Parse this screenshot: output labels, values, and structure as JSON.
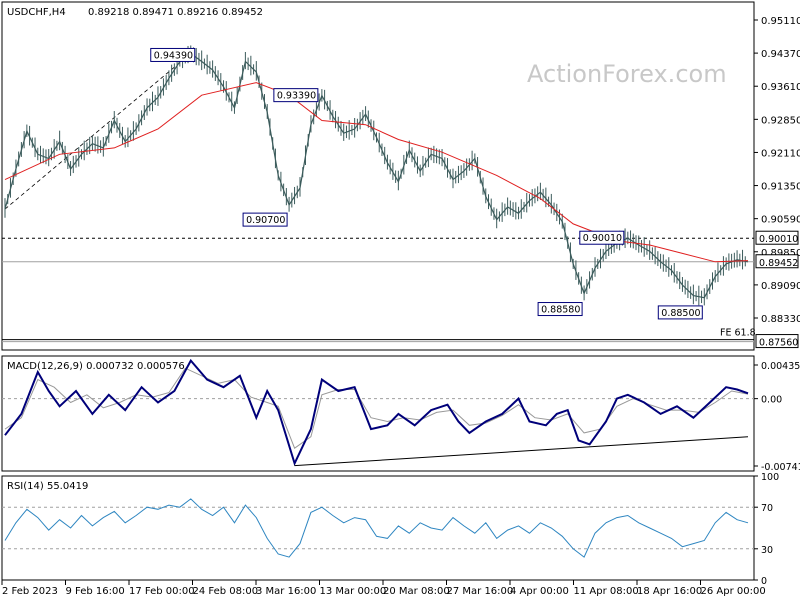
{
  "header": {
    "symbol": "USDCHF,H4",
    "ohlc": "0.89218 0.89471 0.89216 0.89452"
  },
  "watermark": "ActionForex.com",
  "colors": {
    "candle": "#3b5b5b",
    "ma": "#e02020",
    "macd": "#00007a",
    "signal": "#999999",
    "rsi": "#2e86c1",
    "grid": "#c8c8c8",
    "label_border": "#00007a"
  },
  "chart_data": [
    {
      "type": "candlestick",
      "title": "USDCHF,H4",
      "ylim": [
        0.8736,
        0.9561
      ],
      "y_ticks": [
        "0.95110",
        "0.94370",
        "0.93610",
        "0.92850",
        "0.92110",
        "0.91350",
        "0.90590",
        "0.89850",
        "0.89090",
        "0.88330"
      ],
      "x_ticks": [
        "2 Feb 2023",
        "9 Feb 16:00",
        "17 Feb 00:00",
        "24 Feb 08:00",
        "3 Mar 16:00",
        "13 Mar 00:00",
        "20 Mar 08:00",
        "27 Mar 16:00",
        "4 Apr 00:00",
        "11 Apr 08:00",
        "18 Apr 16:00",
        "26 Apr 00:00"
      ],
      "close_path": [
        [
          0,
          0.907
        ],
        [
          2,
          0.9165
        ],
        [
          4,
          0.9255
        ],
        [
          6,
          0.92
        ],
        [
          8,
          0.919
        ],
        [
          10,
          0.923
        ],
        [
          12,
          0.9165
        ],
        [
          14,
          0.92
        ],
        [
          16,
          0.9225
        ],
        [
          18,
          0.9215
        ],
        [
          20,
          0.928
        ],
        [
          22,
          0.923
        ],
        [
          24,
          0.926
        ],
        [
          26,
          0.931
        ],
        [
          28,
          0.9335
        ],
        [
          30,
          0.938
        ],
        [
          32,
          0.942
        ],
        [
          34,
          0.9439
        ],
        [
          36,
          0.942
        ],
        [
          38,
          0.94
        ],
        [
          40,
          0.936
        ],
        [
          42,
          0.931
        ],
        [
          44,
          0.942
        ],
        [
          46,
          0.9395
        ],
        [
          48,
          0.93
        ],
        [
          50,
          0.915
        ],
        [
          52,
          0.908
        ],
        [
          54,
          0.912
        ],
        [
          56,
          0.927
        ],
        [
          58,
          0.9339
        ],
        [
          60,
          0.929
        ],
        [
          62,
          0.925
        ],
        [
          64,
          0.926
        ],
        [
          66,
          0.9295
        ],
        [
          68,
          0.924
        ],
        [
          70,
          0.918
        ],
        [
          72,
          0.9135
        ],
        [
          74,
          0.921
        ],
        [
          76,
          0.916
        ],
        [
          78,
          0.92
        ],
        [
          80,
          0.919
        ],
        [
          82,
          0.914
        ],
        [
          84,
          0.916
        ],
        [
          86,
          0.919
        ],
        [
          88,
          0.91
        ],
        [
          90,
          0.9045
        ],
        [
          92,
          0.9075
        ],
        [
          94,
          0.906
        ],
        [
          96,
          0.909
        ],
        [
          98,
          0.911
        ],
        [
          100,
          0.908
        ],
        [
          102,
          0.904
        ],
        [
          104,
          0.894
        ],
        [
          106,
          0.887
        ],
        [
          108,
          0.893
        ],
        [
          110,
          0.897
        ],
        [
          112,
          0.899
        ],
        [
          114,
          0.9001
        ],
        [
          116,
          0.8985
        ],
        [
          118,
          0.897
        ],
        [
          120,
          0.8945
        ],
        [
          122,
          0.8925
        ],
        [
          124,
          0.889
        ],
        [
          126,
          0.8865
        ],
        [
          128,
          0.886
        ],
        [
          130,
          0.891
        ],
        [
          132,
          0.894
        ],
        [
          134,
          0.895
        ],
        [
          136,
          0.8945
        ]
      ],
      "ma_path": [
        [
          0,
          0.914
        ],
        [
          10,
          0.92
        ],
        [
          20,
          0.9215
        ],
        [
          28,
          0.926
        ],
        [
          36,
          0.934
        ],
        [
          46,
          0.937
        ],
        [
          52,
          0.934
        ],
        [
          58,
          0.928
        ],
        [
          66,
          0.927
        ],
        [
          72,
          0.9235
        ],
        [
          80,
          0.9205
        ],
        [
          90,
          0.915
        ],
        [
          98,
          0.9095
        ],
        [
          104,
          0.9035
        ],
        [
          112,
          0.8995
        ],
        [
          118,
          0.8985
        ],
        [
          124,
          0.8965
        ],
        [
          130,
          0.8945
        ],
        [
          136,
          0.8948
        ]
      ],
      "horizontal_levels": [
        {
          "price": 0.9001,
          "style": "dashed",
          "label": "0.90010"
        },
        {
          "price": 0.89452,
          "style": "solid",
          "label": "0.89452"
        },
        {
          "price": 0.8756,
          "style": "solid",
          "label": "0.87560",
          "note": "FE 61.8"
        }
      ],
      "annotations": [
        {
          "text": "0.94390",
          "x": 34,
          "y": 0.9439,
          "anchor": "above"
        },
        {
          "text": "0.93390",
          "x": 58,
          "y": 0.9339,
          "anchor": "left"
        },
        {
          "text": "0.90700",
          "x": 52,
          "y": 0.907,
          "anchor": "below"
        },
        {
          "text": "0.90010",
          "x": 114,
          "y": 0.9001,
          "anchor": "left"
        },
        {
          "text": "0.88580",
          "x": 106,
          "y": 0.8858,
          "anchor": "below"
        },
        {
          "text": "0.88500",
          "x": 128,
          "y": 0.885,
          "anchor": "below"
        }
      ],
      "trendline": {
        "from": [
          0,
          0.907
        ],
        "to": [
          34,
          0.9439
        ],
        "style": "dashed"
      }
    },
    {
      "type": "line",
      "title": "MACD(12,26,9) 0.000732 0.000576",
      "ylim": [
        -0.0095,
        0.0056
      ],
      "y_ticks": [
        "0.004354",
        "0.00",
        "-0.007417"
      ],
      "macd_path": [
        [
          0,
          -0.0048
        ],
        [
          3,
          -0.002
        ],
        [
          6,
          0.0035
        ],
        [
          8,
          0.001
        ],
        [
          10,
          -0.001
        ],
        [
          13,
          0.001
        ],
        [
          16,
          -0.002
        ],
        [
          19,
          0.0005
        ],
        [
          22,
          -0.0015
        ],
        [
          25,
          0.0015
        ],
        [
          28,
          -0.0005
        ],
        [
          31,
          0.001
        ],
        [
          34,
          0.005
        ],
        [
          37,
          0.0025
        ],
        [
          40,
          0.0015
        ],
        [
          43,
          0.003
        ],
        [
          46,
          -0.0025
        ],
        [
          48,
          0.001
        ],
        [
          50,
          -0.0015
        ],
        [
          53,
          -0.0085
        ],
        [
          56,
          -0.004
        ],
        [
          58,
          0.0025
        ],
        [
          61,
          0.001
        ],
        [
          64,
          0.0015
        ],
        [
          67,
          -0.004
        ],
        [
          70,
          -0.0035
        ],
        [
          72,
          -0.002
        ],
        [
          75,
          -0.0035
        ],
        [
          78,
          -0.0015
        ],
        [
          81,
          -0.0008
        ],
        [
          83,
          -0.003
        ],
        [
          85,
          -0.0045
        ],
        [
          88,
          -0.003
        ],
        [
          91,
          -0.002
        ],
        [
          94,
          0.0
        ],
        [
          96,
          -0.003
        ],
        [
          99,
          -0.0035
        ],
        [
          101,
          -0.002
        ],
        [
          103,
          -0.0015
        ],
        [
          105,
          -0.0055
        ],
        [
          107,
          -0.006
        ],
        [
          110,
          -0.003
        ],
        [
          112,
          0.0
        ],
        [
          114,
          0.0005
        ],
        [
          117,
          -0.0005
        ],
        [
          120,
          -0.002
        ],
        [
          123,
          -0.001
        ],
        [
          126,
          -0.0025
        ],
        [
          129,
          -0.0005
        ],
        [
          132,
          0.0015
        ],
        [
          134,
          0.0012
        ],
        [
          136,
          0.0007
        ]
      ],
      "signal_path": [
        [
          0,
          -0.004
        ],
        [
          3,
          -0.0025
        ],
        [
          6,
          0.0025
        ],
        [
          9,
          0.0015
        ],
        [
          12,
          -0.0005
        ],
        [
          15,
          0.0005
        ],
        [
          18,
          -0.0012
        ],
        [
          21,
          -0.0005
        ],
        [
          24,
          0.0005
        ],
        [
          27,
          0.0002
        ],
        [
          30,
          0.0008
        ],
        [
          33,
          0.004
        ],
        [
          36,
          0.003
        ],
        [
          39,
          0.002
        ],
        [
          42,
          0.0025
        ],
        [
          45,
          0.0002
        ],
        [
          48,
          -0.0005
        ],
        [
          50,
          -0.001
        ],
        [
          53,
          -0.0065
        ],
        [
          56,
          -0.005
        ],
        [
          58,
          0.0005
        ],
        [
          61,
          0.0012
        ],
        [
          64,
          0.0012
        ],
        [
          67,
          -0.0025
        ],
        [
          70,
          -0.003
        ],
        [
          73,
          -0.0025
        ],
        [
          76,
          -0.0028
        ],
        [
          79,
          -0.0018
        ],
        [
          82,
          -0.0015
        ],
        [
          85,
          -0.0035
        ],
        [
          88,
          -0.0032
        ],
        [
          91,
          -0.0022
        ],
        [
          94,
          -0.0008
        ],
        [
          97,
          -0.0025
        ],
        [
          100,
          -0.0028
        ],
        [
          103,
          -0.002
        ],
        [
          106,
          -0.0045
        ],
        [
          109,
          -0.004
        ],
        [
          112,
          -0.001
        ],
        [
          115,
          0.0
        ],
        [
          118,
          -0.0008
        ],
        [
          121,
          -0.0015
        ],
        [
          124,
          -0.0015
        ],
        [
          127,
          -0.0018
        ],
        [
          130,
          -0.0005
        ],
        [
          133,
          0.001
        ],
        [
          136,
          0.0006
        ]
      ],
      "trendline": {
        "from": [
          53,
          -0.0088
        ],
        "to": [
          136,
          -0.005
        ]
      }
    },
    {
      "type": "line",
      "title": "RSI(14) 55.0419",
      "ylim": [
        0,
        100
      ],
      "y_ticks": [
        100,
        70,
        30,
        0
      ],
      "levels": [
        70,
        30
      ],
      "rsi_path": [
        [
          0,
          38
        ],
        [
          2,
          55
        ],
        [
          4,
          68
        ],
        [
          6,
          60
        ],
        [
          8,
          48
        ],
        [
          10,
          58
        ],
        [
          12,
          50
        ],
        [
          14,
          62
        ],
        [
          16,
          52
        ],
        [
          18,
          60
        ],
        [
          20,
          66
        ],
        [
          22,
          55
        ],
        [
          24,
          62
        ],
        [
          26,
          70
        ],
        [
          28,
          68
        ],
        [
          30,
          72
        ],
        [
          32,
          70
        ],
        [
          34,
          78
        ],
        [
          36,
          68
        ],
        [
          38,
          62
        ],
        [
          40,
          70
        ],
        [
          42,
          55
        ],
        [
          44,
          72
        ],
        [
          46,
          60
        ],
        [
          48,
          40
        ],
        [
          50,
          25
        ],
        [
          52,
          22
        ],
        [
          54,
          35
        ],
        [
          56,
          65
        ],
        [
          58,
          70
        ],
        [
          60,
          62
        ],
        [
          62,
          55
        ],
        [
          64,
          60
        ],
        [
          66,
          58
        ],
        [
          68,
          42
        ],
        [
          70,
          40
        ],
        [
          72,
          52
        ],
        [
          74,
          45
        ],
        [
          76,
          55
        ],
        [
          78,
          50
        ],
        [
          80,
          48
        ],
        [
          82,
          60
        ],
        [
          84,
          52
        ],
        [
          86,
          45
        ],
        [
          88,
          55
        ],
        [
          90,
          40
        ],
        [
          92,
          48
        ],
        [
          94,
          52
        ],
        [
          96,
          45
        ],
        [
          98,
          55
        ],
        [
          100,
          50
        ],
        [
          102,
          42
        ],
        [
          104,
          30
        ],
        [
          106,
          22
        ],
        [
          108,
          45
        ],
        [
          110,
          55
        ],
        [
          112,
          60
        ],
        [
          114,
          62
        ],
        [
          116,
          55
        ],
        [
          118,
          50
        ],
        [
          120,
          45
        ],
        [
          122,
          40
        ],
        [
          124,
          32
        ],
        [
          126,
          35
        ],
        [
          128,
          38
        ],
        [
          130,
          55
        ],
        [
          132,
          65
        ],
        [
          134,
          58
        ],
        [
          136,
          55
        ]
      ]
    }
  ]
}
